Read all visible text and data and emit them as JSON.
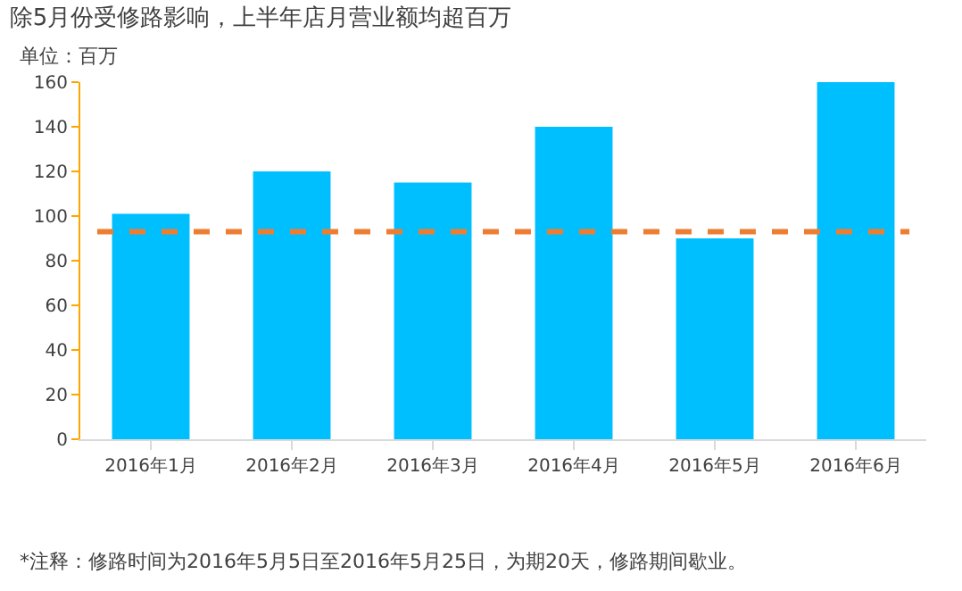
{
  "chart_data": {
    "type": "bar",
    "title": "除5月份受修路影响，上半年店月营业额均超百万",
    "ylabel": "单位：百万",
    "categories": [
      "2016年1月",
      "2016年2月",
      "2016年3月",
      "2016年4月",
      "2016年5月",
      "2016年6月"
    ],
    "values": [
      101,
      120,
      115,
      140,
      90,
      160
    ],
    "color": "#00bfff",
    "ylim": [
      0,
      160
    ],
    "yticks": [
      0,
      20,
      40,
      60,
      80,
      100,
      120,
      140,
      160
    ],
    "grid": false,
    "ref_lines": [
      {
        "axis": "y",
        "value": 93,
        "color": "#ed7d31",
        "line_style": "dashed"
      }
    ],
    "annotations": [
      "*注释：修路时间为2016年5月5日至2016年5月25日，为期20天，修路期间歇业。"
    ]
  }
}
